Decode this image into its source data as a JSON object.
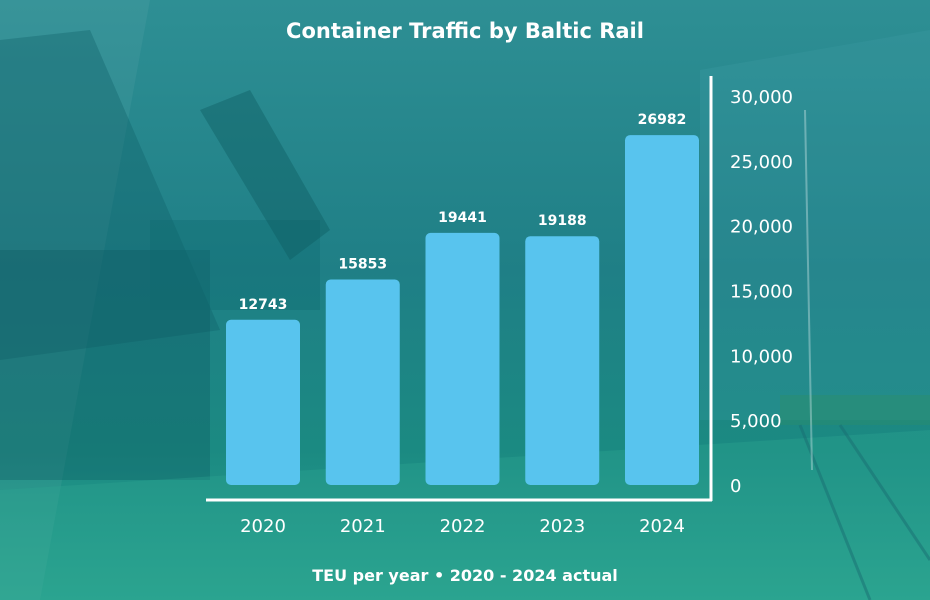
{
  "colors": {
    "bar": "#58c4ee",
    "axis": "#ffffff",
    "text": "#ffffff"
  },
  "chart_data": {
    "type": "bar",
    "title": "Container Traffic by Baltic Rail",
    "subtitle": "TEU per year • 2020 - 2024 actual",
    "categories": [
      "2020",
      "2021",
      "2022",
      "2023",
      "2024"
    ],
    "values": [
      12743,
      15853,
      19441,
      19188,
      26982
    ],
    "data_labels": [
      "12743",
      "15853",
      "19441",
      "19188",
      "26982"
    ],
    "yticks": [
      0,
      5000,
      10000,
      15000,
      20000,
      25000,
      30000
    ],
    "ytick_labels": [
      "0",
      "5,000",
      "10,000",
      "15,000",
      "20,000",
      "25,000",
      "30,000"
    ],
    "ylim": [
      0,
      30000
    ],
    "y_axis_side": "right",
    "grid": false,
    "legend": "none"
  }
}
